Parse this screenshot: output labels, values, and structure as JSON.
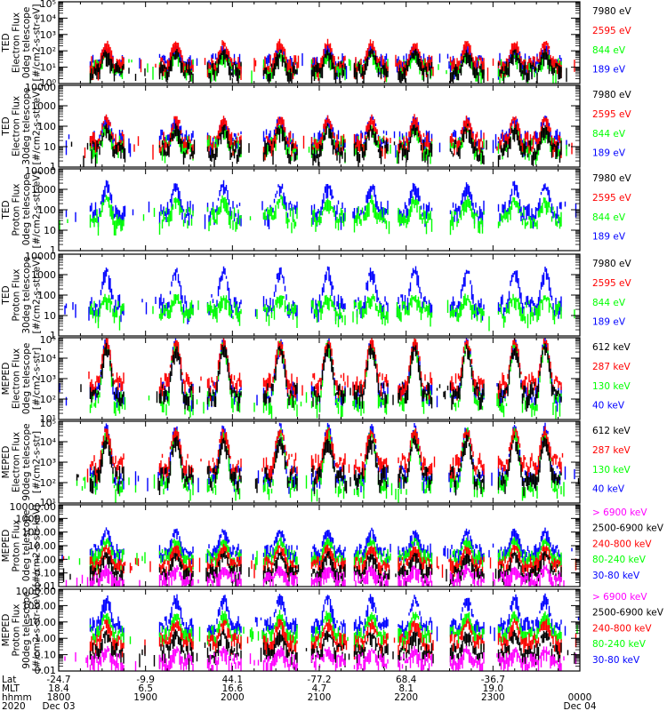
{
  "colors": {
    "black": "#000000",
    "red": "#ff0000",
    "green": "#00ff00",
    "blue": "#0000ff",
    "magenta": "#ff00ff"
  },
  "chart_data": [
    {
      "type": "line",
      "ylabel_lines": [
        "TED",
        "Electron Flux",
        "0deg telescope",
        "[#/cm2-s-str-eV]"
      ],
      "yscale": "log",
      "ylim": [
        1,
        100000
      ],
      "tick_labels": [
        "10⁰",
        "10¹",
        "10²",
        "10³",
        "10⁴",
        "10⁵"
      ],
      "tick_values": [
        1,
        10,
        100,
        1000,
        10000,
        100000
      ],
      "legend": [
        {
          "label": "7980 eV",
          "color": "#000000"
        },
        {
          "label": "2595 eV",
          "color": "#ff0000"
        },
        {
          "label": "844 eV",
          "color": "#00ff00"
        },
        {
          "label": "189 eV",
          "color": "#0000ff"
        }
      ],
      "series": [
        {
          "name": "189 eV",
          "color": "#0000ff",
          "base": 1.3,
          "peak": 2.3
        },
        {
          "name": "844 eV",
          "color": "#00ff00",
          "base": 1.0,
          "peak": 1.9
        },
        {
          "name": "2595 eV",
          "color": "#ff0000",
          "base": 1.2,
          "peak": 2.6
        },
        {
          "name": "7980 eV",
          "color": "#000000",
          "base": 0.8,
          "peak": 2.0
        }
      ]
    },
    {
      "type": "line",
      "ylabel_lines": [
        "TED",
        "Electron Flux",
        "30deg telescope",
        "[#/cm2-s-str-eV]"
      ],
      "yscale": "log",
      "ylim": [
        1,
        10000
      ],
      "tick_labels": [
        "1",
        "10",
        "100",
        "1000",
        "10000"
      ],
      "tick_values": [
        1,
        10,
        100,
        1000,
        10000
      ],
      "legend": [
        {
          "label": "7980 eV",
          "color": "#000000"
        },
        {
          "label": "2595 eV",
          "color": "#ff0000"
        },
        {
          "label": "844 eV",
          "color": "#00ff00"
        },
        {
          "label": "189 eV",
          "color": "#0000ff"
        }
      ],
      "series": [
        {
          "name": "189 eV",
          "color": "#0000ff",
          "base": 1.3,
          "peak": 2.4
        },
        {
          "name": "844 eV",
          "color": "#00ff00",
          "base": 1.0,
          "peak": 2.0
        },
        {
          "name": "2595 eV",
          "color": "#ff0000",
          "base": 1.2,
          "peak": 2.5
        },
        {
          "name": "7980 eV",
          "color": "#000000",
          "base": 0.8,
          "peak": 2.0
        }
      ]
    },
    {
      "type": "line",
      "ylabel_lines": [
        "TED",
        "Proton Flux",
        "0deg telescope",
        "[#/cm2-s-str-eV]"
      ],
      "yscale": "log",
      "ylim": [
        1,
        10000
      ],
      "tick_labels": [
        "1",
        "10",
        "100",
        "1000",
        "10000"
      ],
      "tick_values": [
        1,
        10,
        100,
        1000,
        10000
      ],
      "legend": [
        {
          "label": "7980 eV",
          "color": "#000000"
        },
        {
          "label": "2595 eV",
          "color": "#ff0000"
        },
        {
          "label": "844 eV",
          "color": "#00ff00"
        },
        {
          "label": "189 eV",
          "color": "#0000ff"
        }
      ],
      "series": [
        {
          "name": "189 eV",
          "color": "#0000ff",
          "base": 1.9,
          "peak": 3.3
        },
        {
          "name": "844 eV",
          "color": "#00ff00",
          "base": 1.6,
          "peak": 2.6
        }
      ]
    },
    {
      "type": "line",
      "ylabel_lines": [
        "TED",
        "Proton Flux",
        "30deg telescope",
        "[#/cm2-s-str-eV]"
      ],
      "yscale": "log",
      "ylim": [
        1,
        10000
      ],
      "tick_labels": [
        "1",
        "10",
        "100",
        "1000",
        "10000"
      ],
      "tick_values": [
        1,
        10,
        100,
        1000,
        10000
      ],
      "legend": [
        {
          "label": "7980 eV",
          "color": "#000000"
        },
        {
          "label": "2595 eV",
          "color": "#ff0000"
        },
        {
          "label": "844 eV",
          "color": "#00ff00"
        },
        {
          "label": "189 eV",
          "color": "#0000ff"
        }
      ],
      "series": [
        {
          "name": "189 eV",
          "color": "#0000ff",
          "base": 1.5,
          "peak": 3.3
        },
        {
          "name": "844 eV",
          "color": "#00ff00",
          "base": 1.2,
          "peak": 2.0
        }
      ]
    },
    {
      "type": "line",
      "ylabel_lines": [
        "MEPED",
        "Electron Flux",
        "0deg telescope",
        "[#/cm2-s-str]"
      ],
      "yscale": "log",
      "ylim": [
        10,
        100000
      ],
      "tick_labels": [
        "10¹",
        "10²",
        "10³",
        "10⁴",
        "10⁵"
      ],
      "tick_values": [
        10,
        100,
        1000,
        10000,
        100000
      ],
      "legend": [
        {
          "label": "612 keV",
          "color": "#000000"
        },
        {
          "label": "287 keV",
          "color": "#ff0000"
        },
        {
          "label": "130 keV",
          "color": "#00ff00"
        },
        {
          "label": "40 keV",
          "color": "#0000ff"
        }
      ],
      "series": [
        {
          "name": "40 keV",
          "color": "#0000ff",
          "base": 2.3,
          "peak": 4.9
        },
        {
          "name": "130 keV",
          "color": "#00ff00",
          "base": 1.9,
          "peak": 4.8
        },
        {
          "name": "287 keV",
          "color": "#ff0000",
          "base": 2.8,
          "peak": 4.9
        },
        {
          "name": "612 keV",
          "color": "#000000",
          "base": 2.3,
          "peak": 4.6
        }
      ]
    },
    {
      "type": "line",
      "ylabel_lines": [
        "MEPED",
        "Electron Flux",
        "90deg telescope",
        "[#/cm2-s-str]"
      ],
      "yscale": "log",
      "ylim": [
        10,
        100000
      ],
      "tick_labels": [
        "10¹",
        "10²",
        "10³",
        "10⁴",
        "10⁵"
      ],
      "tick_values": [
        10,
        100,
        1000,
        10000,
        100000
      ],
      "legend": [
        {
          "label": "612 keV",
          "color": "#000000"
        },
        {
          "label": "287 keV",
          "color": "#ff0000"
        },
        {
          "label": "130 keV",
          "color": "#00ff00"
        },
        {
          "label": "40 keV",
          "color": "#0000ff"
        }
      ],
      "series": [
        {
          "name": "40 keV",
          "color": "#0000ff",
          "base": 2.3,
          "peak": 4.8
        },
        {
          "name": "130 keV",
          "color": "#00ff00",
          "base": 1.9,
          "peak": 4.6
        },
        {
          "name": "287 keV",
          "color": "#ff0000",
          "base": 2.9,
          "peak": 4.6
        },
        {
          "name": "612 keV",
          "color": "#000000",
          "base": 2.3,
          "peak": 4.2
        }
      ]
    },
    {
      "type": "line",
      "ylabel_lines": [
        "MEPED",
        "Proton Flux",
        "0deg telescope",
        "[#/cm2-s-str-keV]"
      ],
      "yscale": "log",
      "ylim": [
        0.01,
        10000
      ],
      "tick_labels": [
        "0.01",
        "0.10",
        "1.00",
        "10.00",
        "100.00",
        "1000.00",
        "10000.00"
      ],
      "tick_values": [
        0.01,
        0.1,
        1,
        10,
        100,
        1000,
        10000
      ],
      "legend": [
        {
          "label": "> 6900 keV",
          "color": "#ff00ff"
        },
        {
          "label": "2500-6900 keV",
          "color": "#000000"
        },
        {
          "label": "240-800 keV",
          "color": "#ff0000"
        },
        {
          "label": "80-240 keV",
          "color": "#00ff00"
        },
        {
          "label": "30-80 keV",
          "color": "#0000ff"
        }
      ],
      "series": [
        {
          "name": "30-80 keV",
          "color": "#0000ff",
          "base": 0.6,
          "peak": 2.2
        },
        {
          "name": "80-240 keV",
          "color": "#00ff00",
          "base": 0.2,
          "peak": 1.5
        },
        {
          "name": "240-800 keV",
          "color": "#ff0000",
          "base": -0.3,
          "peak": 1.0
        },
        {
          "name": "2500-6900 keV",
          "color": "#000000",
          "base": -0.9,
          "peak": 0.5
        },
        {
          "name": "> 6900 keV",
          "color": "#ff00ff",
          "base": -1.4,
          "peak": -0.5
        }
      ]
    },
    {
      "type": "line",
      "ylabel_lines": [
        "MEPED",
        "Proton Flux",
        "90deg telescope",
        "[#/cm2-s-str-keV]"
      ],
      "yscale": "log",
      "ylim": [
        0.01,
        1000
      ],
      "tick_labels": [
        "0.01",
        "0.10",
        "1.00",
        "10.00",
        "100.00",
        "1000.00"
      ],
      "tick_values": [
        0.01,
        0.1,
        1,
        10,
        100,
        1000
      ],
      "legend": [
        {
          "label": "> 6900 keV",
          "color": "#ff00ff"
        },
        {
          "label": "2500-6900 keV",
          "color": "#000000"
        },
        {
          "label": "240-800 keV",
          "color": "#ff0000"
        },
        {
          "label": "80-240 keV",
          "color": "#00ff00"
        },
        {
          "label": "30-80 keV",
          "color": "#0000ff"
        }
      ],
      "series": [
        {
          "name": "30-80 keV",
          "color": "#0000ff",
          "base": 0.8,
          "peak": 2.6
        },
        {
          "name": "80-240 keV",
          "color": "#00ff00",
          "base": 0.3,
          "peak": 1.6
        },
        {
          "name": "240-800 keV",
          "color": "#ff0000",
          "base": -0.2,
          "peak": 1.1
        },
        {
          "name": "2500-6900 keV",
          "color": "#000000",
          "base": -0.8,
          "peak": 0.4
        },
        {
          "name": "> 6900 keV",
          "color": "#ff00ff",
          "base": -1.4,
          "peak": -0.6
        }
      ]
    }
  ],
  "x_axis": {
    "row_labels": {
      "lat": "Lat",
      "mlt": "MLT",
      "hhmm": "hhmm",
      "year": "2020"
    },
    "ticks": [
      {
        "hhmm": "1800",
        "lat": "-24.7",
        "mlt": "18.4",
        "date": "Dec 03"
      },
      {
        "hhmm": "1900",
        "lat": "-9.9",
        "mlt": "6.5",
        "date": ""
      },
      {
        "hhmm": "2000",
        "lat": "44.1",
        "mlt": "16.6",
        "date": ""
      },
      {
        "hhmm": "2100",
        "lat": "-77.2",
        "mlt": "4.7",
        "date": ""
      },
      {
        "hhmm": "2200",
        "lat": "68.4",
        "mlt": "8.1",
        "date": ""
      },
      {
        "hhmm": "2300",
        "lat": "-36.7",
        "mlt": "19.0",
        "date": ""
      },
      {
        "hhmm": "0000",
        "lat": "",
        "mlt": "",
        "date": "Dec 04"
      }
    ],
    "x_range_hours": [
      18,
      24
    ],
    "pass_centers_hours": [
      18.55,
      19.35,
      19.9,
      20.55,
      21.1,
      21.6,
      22.1,
      22.7,
      23.25,
      23.6
    ]
  }
}
